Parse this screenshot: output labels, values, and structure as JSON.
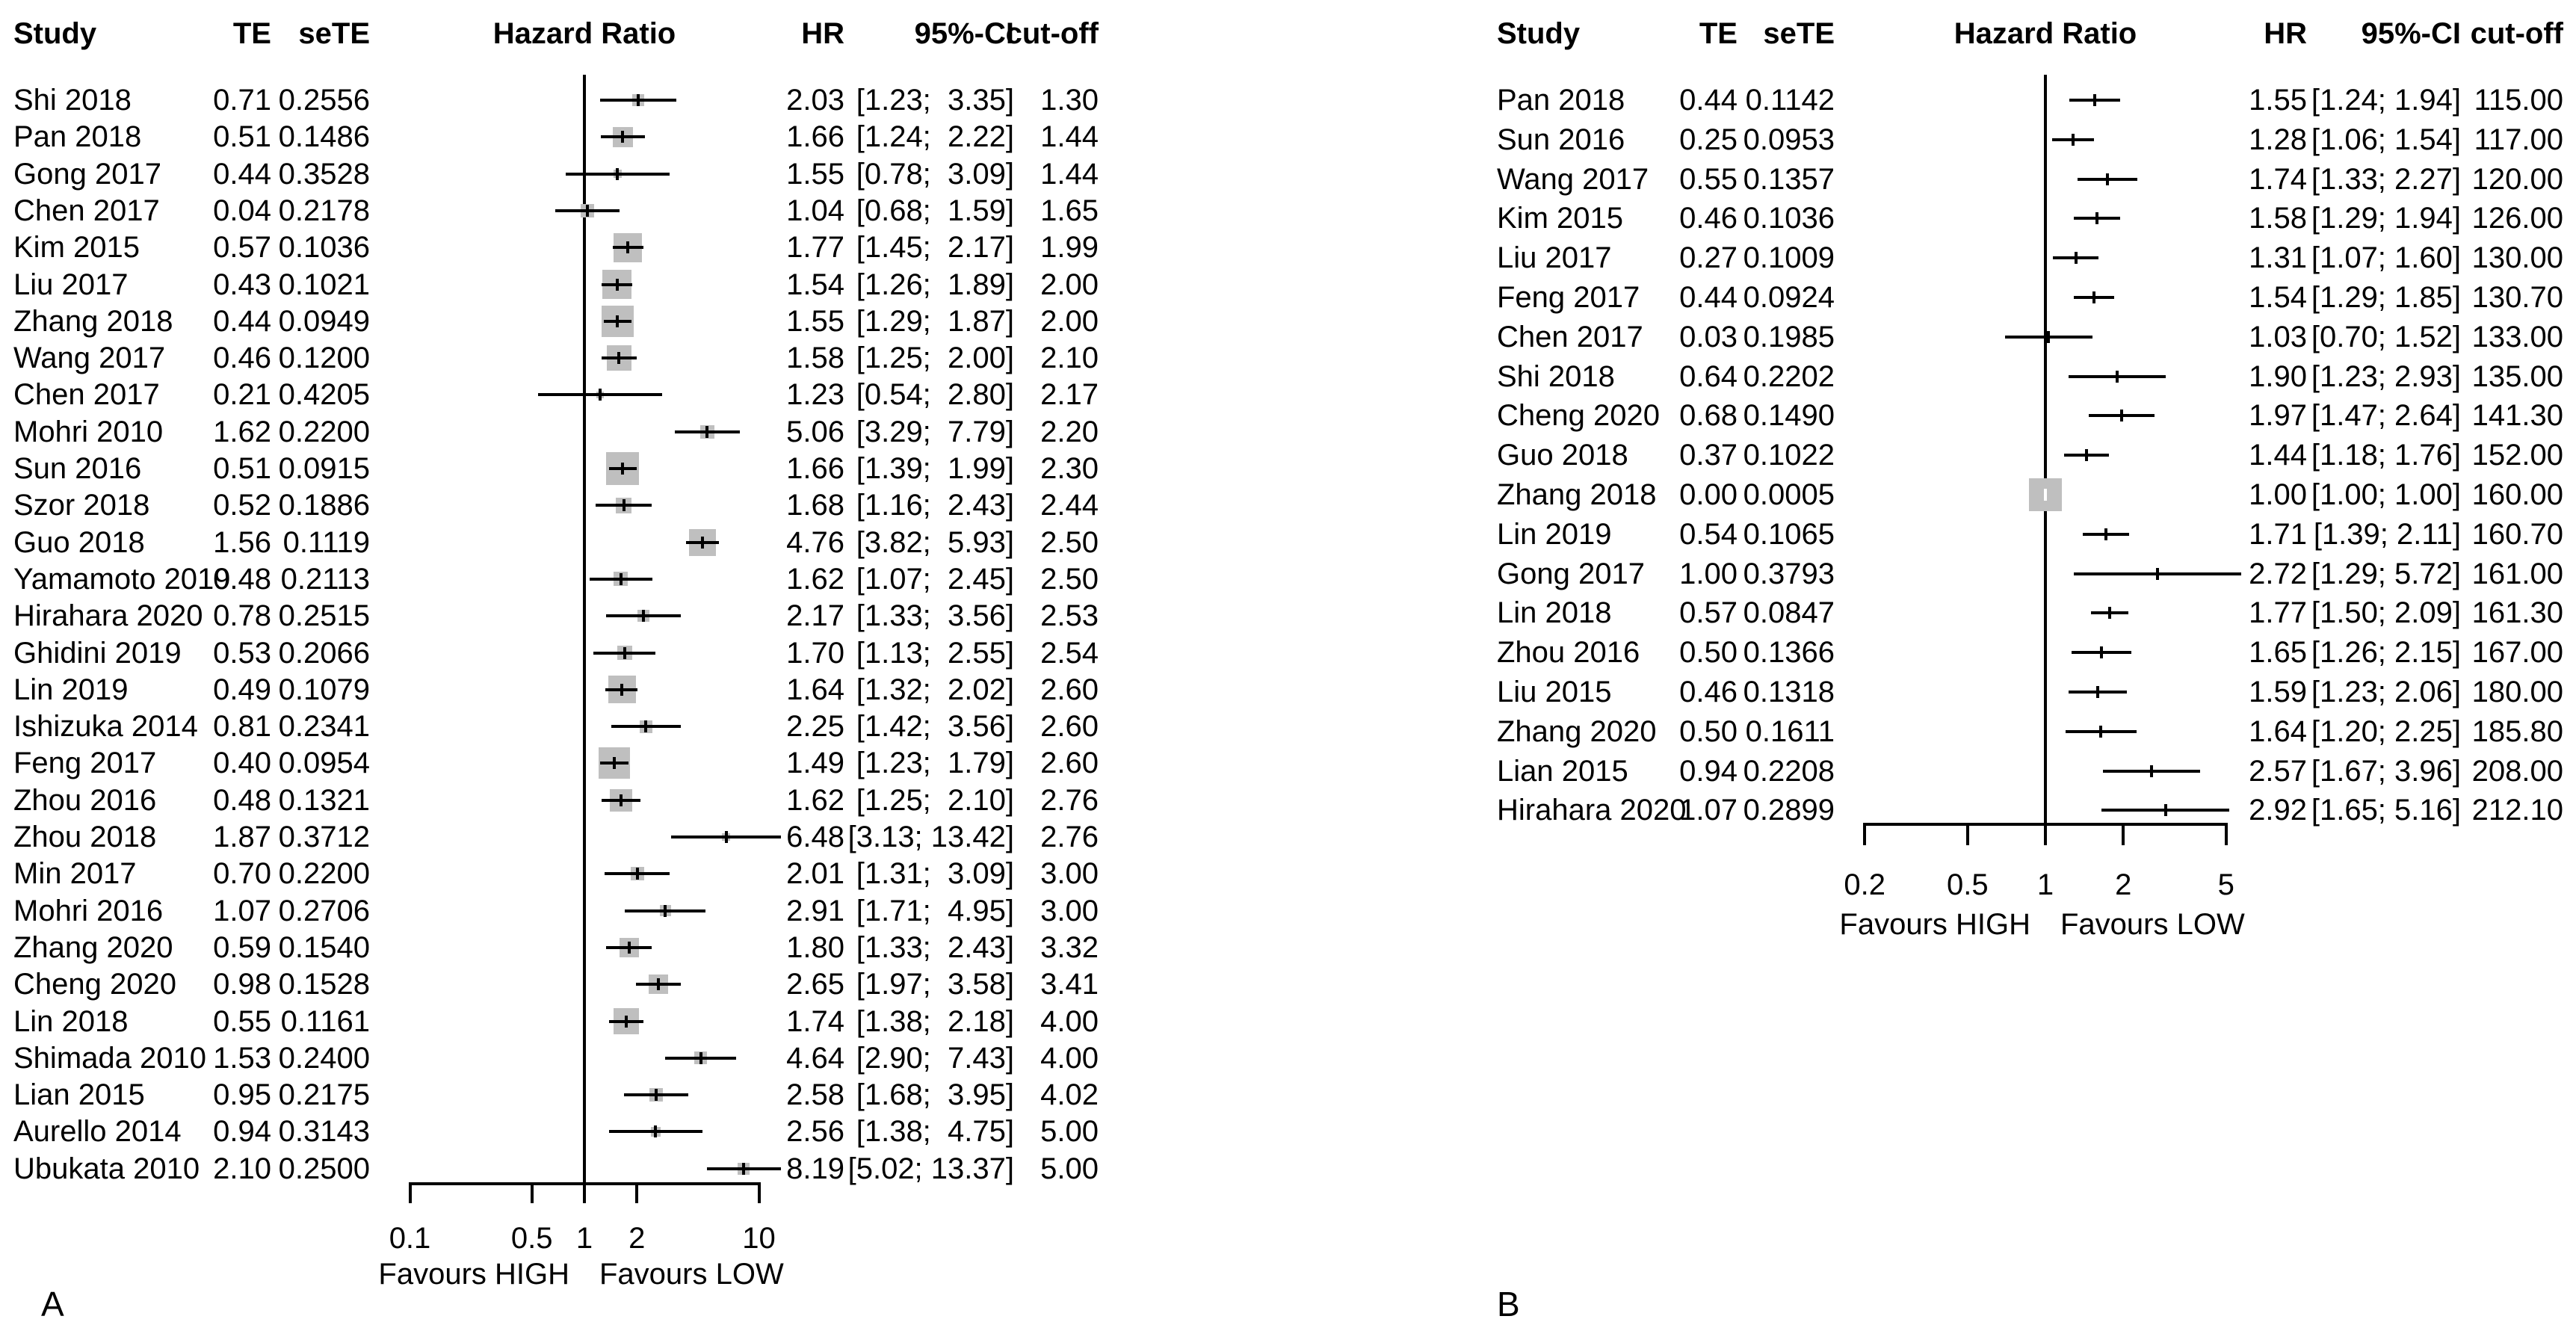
{
  "figure": {
    "background": "#ffffff",
    "text_color": "#000000",
    "square_color": "#bfbfbf"
  },
  "chart_data": [
    {
      "type": "forest",
      "panel": "A",
      "title": "Hazard Ratio",
      "columns": {
        "study": "Study",
        "te": "TE",
        "sete": "seTE",
        "hr": "HR",
        "ci": "95%-CI",
        "cutoff": "cut-off"
      },
      "x_axis": {
        "scale": "log",
        "ref_line": 1,
        "ticks": [
          0.1,
          0.5,
          1,
          2,
          10
        ],
        "favours_left": "Favours HIGH",
        "favours_right": "Favours LOW"
      },
      "studies": [
        {
          "study": "Shi 2018",
          "te": 0.71,
          "sete": 0.2556,
          "hr": 2.03,
          "ci_low": 1.23,
          "ci_high": 3.35,
          "ci_text": "[1.23;  3.35]",
          "cutoff": 1.3
        },
        {
          "study": "Pan 2018",
          "te": 0.51,
          "sete": 0.1486,
          "hr": 1.66,
          "ci_low": 1.24,
          "ci_high": 2.22,
          "ci_text": "[1.24;  2.22]",
          "cutoff": 1.44
        },
        {
          "study": "Gong 2017",
          "te": 0.44,
          "sete": 0.3528,
          "hr": 1.55,
          "ci_low": 0.78,
          "ci_high": 3.09,
          "ci_text": "[0.78;  3.09]",
          "cutoff": 1.44
        },
        {
          "study": "Chen 2017",
          "te": 0.04,
          "sete": 0.2178,
          "hr": 1.04,
          "ci_low": 0.68,
          "ci_high": 1.59,
          "ci_text": "[0.68;  1.59]",
          "cutoff": 1.65
        },
        {
          "study": "Kim 2015",
          "te": 0.57,
          "sete": 0.1036,
          "hr": 1.77,
          "ci_low": 1.45,
          "ci_high": 2.17,
          "ci_text": "[1.45;  2.17]",
          "cutoff": 1.99
        },
        {
          "study": "Liu 2017",
          "te": 0.43,
          "sete": 0.1021,
          "hr": 1.54,
          "ci_low": 1.26,
          "ci_high": 1.89,
          "ci_text": "[1.26;  1.89]",
          "cutoff": 2.0
        },
        {
          "study": "Zhang 2018",
          "te": 0.44,
          "sete": 0.0949,
          "hr": 1.55,
          "ci_low": 1.29,
          "ci_high": 1.87,
          "ci_text": "[1.29;  1.87]",
          "cutoff": 2.0
        },
        {
          "study": "Wang 2017",
          "te": 0.46,
          "sete": 0.12,
          "hr": 1.58,
          "ci_low": 1.25,
          "ci_high": 2.0,
          "ci_text": "[1.25;  2.00]",
          "cutoff": 2.1
        },
        {
          "study": "Chen 2017",
          "te": 0.21,
          "sete": 0.4205,
          "hr": 1.23,
          "ci_low": 0.54,
          "ci_high": 2.8,
          "ci_text": "[0.54;  2.80]",
          "cutoff": 2.17
        },
        {
          "study": "Mohri 2010",
          "te": 1.62,
          "sete": 0.22,
          "hr": 5.06,
          "ci_low": 3.29,
          "ci_high": 7.79,
          "ci_text": "[3.29;  7.79]",
          "cutoff": 2.2
        },
        {
          "study": "Sun 2016",
          "te": 0.51,
          "sete": 0.0915,
          "hr": 1.66,
          "ci_low": 1.39,
          "ci_high": 1.99,
          "ci_text": "[1.39;  1.99]",
          "cutoff": 2.3
        },
        {
          "study": "Szor 2018",
          "te": 0.52,
          "sete": 0.1886,
          "hr": 1.68,
          "ci_low": 1.16,
          "ci_high": 2.43,
          "ci_text": "[1.16;  2.43]",
          "cutoff": 2.44
        },
        {
          "study": "Guo 2018",
          "te": 1.56,
          "sete": 0.1119,
          "hr": 4.76,
          "ci_low": 3.82,
          "ci_high": 5.93,
          "ci_text": "[3.82;  5.93]",
          "cutoff": 2.5
        },
        {
          "study": "Yamamoto 2019",
          "te": 0.48,
          "sete": 0.2113,
          "hr": 1.62,
          "ci_low": 1.07,
          "ci_high": 2.45,
          "ci_text": "[1.07;  2.45]",
          "cutoff": 2.5
        },
        {
          "study": "Hirahara 2020",
          "te": 0.78,
          "sete": 0.2515,
          "hr": 2.17,
          "ci_low": 1.33,
          "ci_high": 3.56,
          "ci_text": "[1.33;  3.56]",
          "cutoff": 2.53
        },
        {
          "study": "Ghidini 2019",
          "te": 0.53,
          "sete": 0.2066,
          "hr": 1.7,
          "ci_low": 1.13,
          "ci_high": 2.55,
          "ci_text": "[1.13;  2.55]",
          "cutoff": 2.54
        },
        {
          "study": "Lin 2019",
          "te": 0.49,
          "sete": 0.1079,
          "hr": 1.64,
          "ci_low": 1.32,
          "ci_high": 2.02,
          "ci_text": "[1.32;  2.02]",
          "cutoff": 2.6
        },
        {
          "study": "Ishizuka 2014",
          "te": 0.81,
          "sete": 0.2341,
          "hr": 2.25,
          "ci_low": 1.42,
          "ci_high": 3.56,
          "ci_text": "[1.42;  3.56]",
          "cutoff": 2.6
        },
        {
          "study": "Feng 2017",
          "te": 0.4,
          "sete": 0.0954,
          "hr": 1.49,
          "ci_low": 1.23,
          "ci_high": 1.79,
          "ci_text": "[1.23;  1.79]",
          "cutoff": 2.6
        },
        {
          "study": "Zhou 2016",
          "te": 0.48,
          "sete": 0.1321,
          "hr": 1.62,
          "ci_low": 1.25,
          "ci_high": 2.1,
          "ci_text": "[1.25;  2.10]",
          "cutoff": 2.76
        },
        {
          "study": "Zhou 2018",
          "te": 1.87,
          "sete": 0.3712,
          "hr": 6.48,
          "ci_low": 3.13,
          "ci_high": 13.42,
          "ci_text": "[3.13; 13.42]",
          "cutoff": 2.76
        },
        {
          "study": "Min 2017",
          "te": 0.7,
          "sete": 0.22,
          "hr": 2.01,
          "ci_low": 1.31,
          "ci_high": 3.09,
          "ci_text": "[1.31;  3.09]",
          "cutoff": 3.0
        },
        {
          "study": "Mohri 2016",
          "te": 1.07,
          "sete": 0.2706,
          "hr": 2.91,
          "ci_low": 1.71,
          "ci_high": 4.95,
          "ci_text": "[1.71;  4.95]",
          "cutoff": 3.0
        },
        {
          "study": "Zhang 2020",
          "te": 0.59,
          "sete": 0.154,
          "hr": 1.8,
          "ci_low": 1.33,
          "ci_high": 2.43,
          "ci_text": "[1.33;  2.43]",
          "cutoff": 3.32
        },
        {
          "study": "Cheng 2020",
          "te": 0.98,
          "sete": 0.1528,
          "hr": 2.65,
          "ci_low": 1.97,
          "ci_high": 3.58,
          "ci_text": "[1.97;  3.58]",
          "cutoff": 3.41
        },
        {
          "study": "Lin 2018",
          "te": 0.55,
          "sete": 0.1161,
          "hr": 1.74,
          "ci_low": 1.38,
          "ci_high": 2.18,
          "ci_text": "[1.38;  2.18]",
          "cutoff": 4.0
        },
        {
          "study": "Shimada 2010",
          "te": 1.53,
          "sete": 0.24,
          "hr": 4.64,
          "ci_low": 2.9,
          "ci_high": 7.43,
          "ci_text": "[2.90;  7.43]",
          "cutoff": 4.0
        },
        {
          "study": "Lian 2015",
          "te": 0.95,
          "sete": 0.2175,
          "hr": 2.58,
          "ci_low": 1.68,
          "ci_high": 3.95,
          "ci_text": "[1.68;  3.95]",
          "cutoff": 4.02
        },
        {
          "study": "Aurello 2014",
          "te": 0.94,
          "sete": 0.3143,
          "hr": 2.56,
          "ci_low": 1.38,
          "ci_high": 4.75,
          "ci_text": "[1.38;  4.75]",
          "cutoff": 5.0
        },
        {
          "study": "Ubukata 2010",
          "te": 2.1,
          "sete": 0.25,
          "hr": 8.19,
          "ci_low": 5.02,
          "ci_high": 13.37,
          "ci_text": "[5.02; 13.37]",
          "cutoff": 5.0
        }
      ]
    },
    {
      "type": "forest",
      "panel": "B",
      "title": "Hazard Ratio",
      "columns": {
        "study": "Study",
        "te": "TE",
        "sete": "seTE",
        "hr": "HR",
        "ci": "95%-CI",
        "cutoff": "cut-off"
      },
      "x_axis": {
        "scale": "log",
        "ref_line": 1,
        "ticks": [
          0.2,
          0.5,
          1,
          2,
          5
        ],
        "favours_left": "Favours HIGH",
        "favours_right": "Favours LOW"
      },
      "studies": [
        {
          "study": "Pan 2018",
          "te": 0.44,
          "sete": 0.1142,
          "hr": 1.55,
          "ci_low": 1.24,
          "ci_high": 1.94,
          "ci_text": "[1.24; 1.94]",
          "cutoff": 115.0
        },
        {
          "study": "Sun 2016",
          "te": 0.25,
          "sete": 0.0953,
          "hr": 1.28,
          "ci_low": 1.06,
          "ci_high": 1.54,
          "ci_text": "[1.06; 1.54]",
          "cutoff": 117.0
        },
        {
          "study": "Wang 2017",
          "te": 0.55,
          "sete": 0.1357,
          "hr": 1.74,
          "ci_low": 1.33,
          "ci_high": 2.27,
          "ci_text": "[1.33; 2.27]",
          "cutoff": 120.0
        },
        {
          "study": "Kim 2015",
          "te": 0.46,
          "sete": 0.1036,
          "hr": 1.58,
          "ci_low": 1.29,
          "ci_high": 1.94,
          "ci_text": "[1.29; 1.94]",
          "cutoff": 126.0
        },
        {
          "study": "Liu 2017",
          "te": 0.27,
          "sete": 0.1009,
          "hr": 1.31,
          "ci_low": 1.07,
          "ci_high": 1.6,
          "ci_text": "[1.07; 1.60]",
          "cutoff": 130.0
        },
        {
          "study": "Feng 2017",
          "te": 0.44,
          "sete": 0.0924,
          "hr": 1.54,
          "ci_low": 1.29,
          "ci_high": 1.85,
          "ci_text": "[1.29; 1.85]",
          "cutoff": 130.7
        },
        {
          "study": "Chen 2017",
          "te": 0.03,
          "sete": 0.1985,
          "hr": 1.03,
          "ci_low": 0.7,
          "ci_high": 1.52,
          "ci_text": "[0.70; 1.52]",
          "cutoff": 133.0
        },
        {
          "study": "Shi 2018",
          "te": 0.64,
          "sete": 0.2202,
          "hr": 1.9,
          "ci_low": 1.23,
          "ci_high": 2.93,
          "ci_text": "[1.23; 2.93]",
          "cutoff": 135.0
        },
        {
          "study": "Cheng 2020",
          "te": 0.68,
          "sete": 0.149,
          "hr": 1.97,
          "ci_low": 1.47,
          "ci_high": 2.64,
          "ci_text": "[1.47; 2.64]",
          "cutoff": 141.3
        },
        {
          "study": "Guo 2018",
          "te": 0.37,
          "sete": 0.1022,
          "hr": 1.44,
          "ci_low": 1.18,
          "ci_high": 1.76,
          "ci_text": "[1.18; 1.76]",
          "cutoff": 152.0
        },
        {
          "study": "Zhang 2018",
          "te": 0.0,
          "sete": 0.0005,
          "hr": 1.0,
          "ci_low": 1.0,
          "ci_high": 1.0,
          "ci_text": "[1.00; 1.00]",
          "cutoff": 160.0
        },
        {
          "study": "Lin 2019",
          "te": 0.54,
          "sete": 0.1065,
          "hr": 1.71,
          "ci_low": 1.39,
          "ci_high": 2.11,
          "ci_text": "[1.39; 2.11]",
          "cutoff": 160.7
        },
        {
          "study": "Gong 2017",
          "te": 1.0,
          "sete": 0.3793,
          "hr": 2.72,
          "ci_low": 1.29,
          "ci_high": 5.72,
          "ci_text": "[1.29; 5.72]",
          "cutoff": 161.0
        },
        {
          "study": "Lin 2018",
          "te": 0.57,
          "sete": 0.0847,
          "hr": 1.77,
          "ci_low": 1.5,
          "ci_high": 2.09,
          "ci_text": "[1.50; 2.09]",
          "cutoff": 161.3
        },
        {
          "study": "Zhou 2016",
          "te": 0.5,
          "sete": 0.1366,
          "hr": 1.65,
          "ci_low": 1.26,
          "ci_high": 2.15,
          "ci_text": "[1.26; 2.15]",
          "cutoff": 167.0
        },
        {
          "study": "Liu 2015",
          "te": 0.46,
          "sete": 0.1318,
          "hr": 1.59,
          "ci_low": 1.23,
          "ci_high": 2.06,
          "ci_text": "[1.23; 2.06]",
          "cutoff": 180.0
        },
        {
          "study": "Zhang 2020",
          "te": 0.5,
          "sete": 0.1611,
          "hr": 1.64,
          "ci_low": 1.2,
          "ci_high": 2.25,
          "ci_text": "[1.20; 2.25]",
          "cutoff": 185.8
        },
        {
          "study": "Lian 2015",
          "te": 0.94,
          "sete": 0.2208,
          "hr": 2.57,
          "ci_low": 1.67,
          "ci_high": 3.96,
          "ci_text": "[1.67; 3.96]",
          "cutoff": 208.0
        },
        {
          "study": "Hirahara 2020",
          "te": 1.07,
          "sete": 0.2899,
          "hr": 2.92,
          "ci_low": 1.65,
          "ci_high": 5.16,
          "ci_text": "[1.65; 5.16]",
          "cutoff": 212.1
        }
      ]
    }
  ]
}
